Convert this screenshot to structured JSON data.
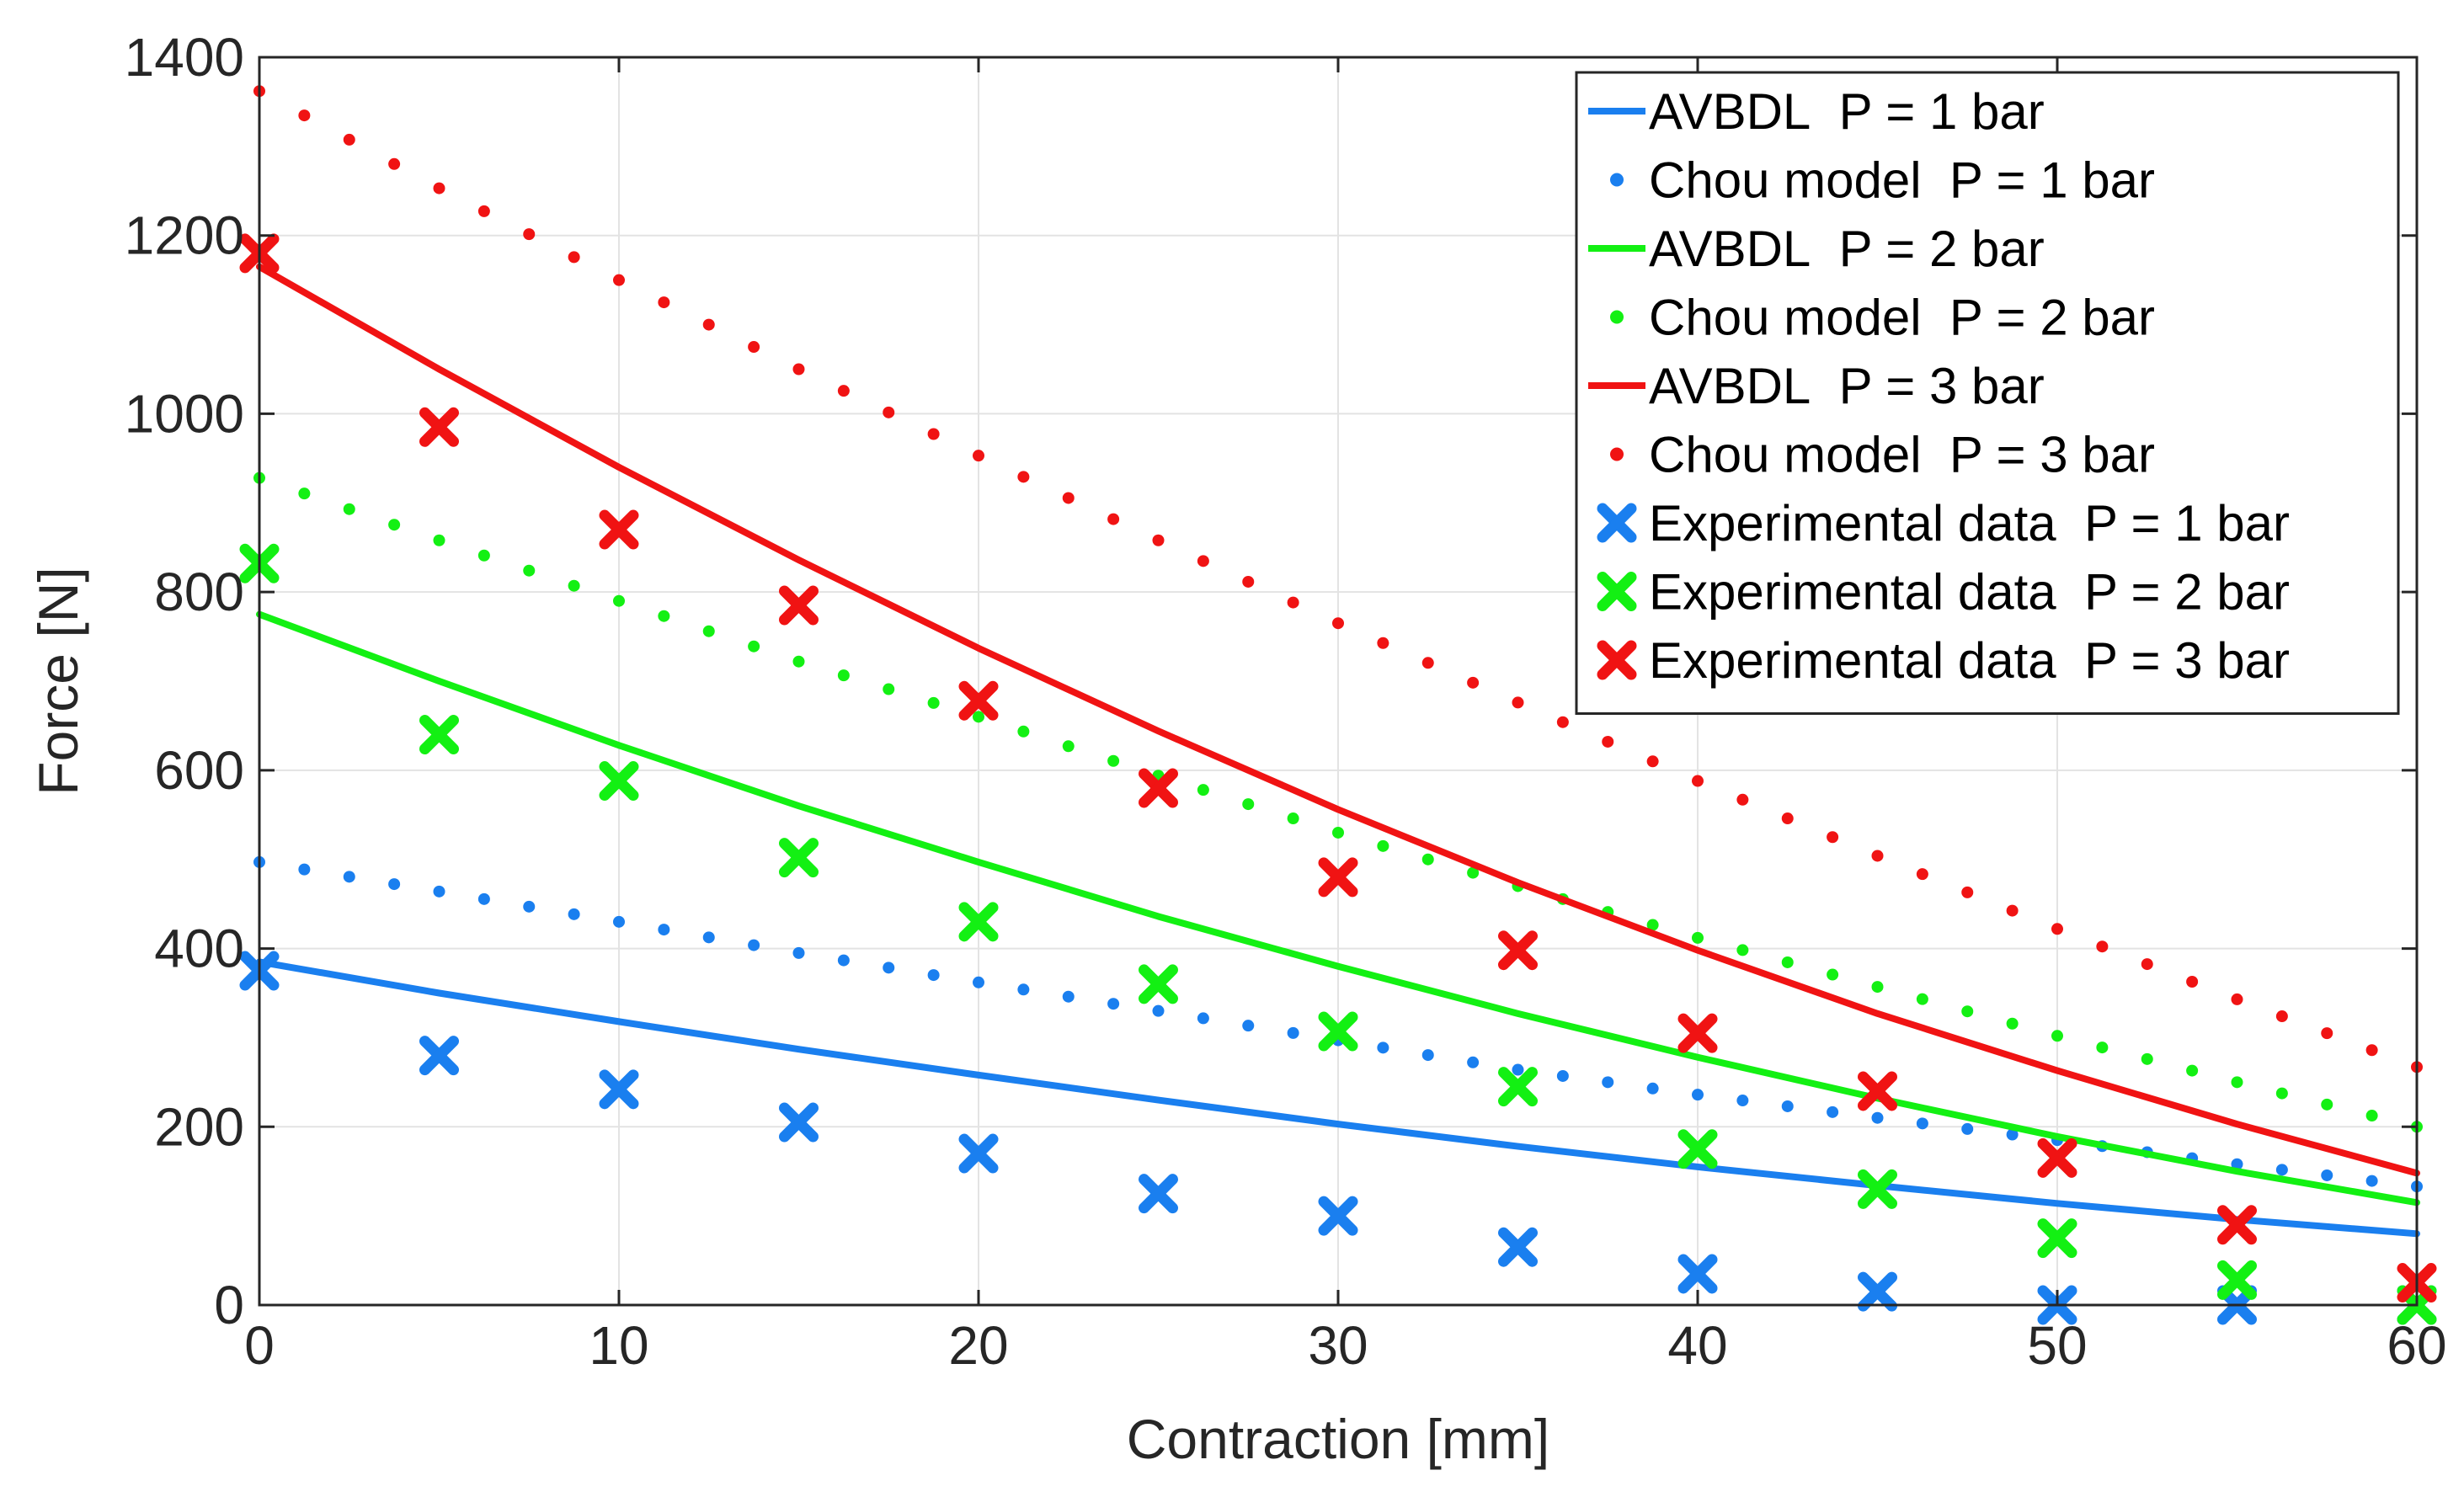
{
  "chart_data": {
    "type": "line",
    "title": "",
    "xlabel": "Contraction [mm]",
    "ylabel": "Force [N]",
    "xlim": [
      0,
      60
    ],
    "ylim": [
      0,
      1400
    ],
    "xticks": [
      0,
      10,
      20,
      30,
      40,
      50,
      60
    ],
    "yticks": [
      0,
      200,
      400,
      600,
      800,
      1000,
      1200,
      1400
    ],
    "grid": true,
    "legend_position": "top-right",
    "colors": {
      "blue": "#1a7fef",
      "green": "#13f013",
      "red": "#f01313"
    },
    "series": [
      {
        "name": "AVBDL",
        "pressure": "P = 1 bar",
        "style": "line",
        "color": "#1a7fef",
        "x": [
          0,
          5,
          10,
          15,
          20,
          25,
          30,
          35,
          40,
          45,
          50,
          55,
          60
        ],
        "y": [
          385,
          350,
          318,
          287,
          258,
          230,
          203,
          178,
          155,
          134,
          114,
          96,
          80
        ]
      },
      {
        "name": "Chou model",
        "pressure": "P = 1 bar",
        "style": "dotted",
        "color": "#1a7fef",
        "x": [
          0,
          5,
          10,
          15,
          20,
          25,
          30,
          35,
          40,
          45,
          50,
          55,
          60
        ],
        "y": [
          497,
          464,
          430,
          395,
          362,
          330,
          297,
          264,
          236,
          210,
          185,
          158,
          133
        ]
      },
      {
        "name": "AVBDL",
        "pressure": "P = 2 bar",
        "style": "line",
        "color": "#13f013",
        "x": [
          0,
          5,
          10,
          15,
          20,
          25,
          30,
          35,
          40,
          45,
          50,
          55,
          60
        ],
        "y": [
          775,
          700,
          628,
          560,
          497,
          436,
          380,
          327,
          278,
          232,
          189,
          150,
          115
        ]
      },
      {
        "name": "Chou model",
        "pressure": "P = 2 bar",
        "style": "dotted",
        "color": "#13f013",
        "x": [
          0,
          5,
          10,
          15,
          20,
          25,
          30,
          35,
          40,
          45,
          50,
          55,
          60
        ],
        "y": [
          928,
          858,
          790,
          722,
          660,
          594,
          530,
          470,
          412,
          357,
          302,
          250,
          200
        ]
      },
      {
        "name": "AVBDL",
        "pressure": "P = 3 bar",
        "style": "line",
        "color": "#f01313",
        "x": [
          0,
          5,
          10,
          15,
          20,
          25,
          30,
          35,
          40,
          45,
          50,
          55,
          60
        ],
        "y": [
          1165,
          1050,
          940,
          836,
          737,
          644,
          556,
          474,
          398,
          327,
          263,
          203,
          148
        ]
      },
      {
        "name": "Chou model",
        "pressure": "P = 3 bar",
        "style": "dotted",
        "color": "#f01313",
        "x": [
          0,
          5,
          10,
          15,
          20,
          25,
          30,
          35,
          40,
          45,
          50,
          55,
          60
        ],
        "y": [
          1362,
          1253,
          1150,
          1050,
          953,
          858,
          765,
          676,
          588,
          504,
          422,
          343,
          267
        ]
      },
      {
        "name": "Experimental data",
        "pressure": "P = 1 bar",
        "style": "marker",
        "color": "#1a7fef",
        "x": [
          0,
          5,
          10,
          15,
          20,
          25,
          30,
          35,
          40,
          45,
          50,
          55,
          60
        ],
        "y": [
          375,
          280,
          242,
          205,
          170,
          125,
          100,
          65,
          35,
          15,
          0,
          0,
          0
        ]
      },
      {
        "name": "Experimental data",
        "pressure": "P = 2 bar",
        "style": "marker",
        "color": "#13f013",
        "x": [
          0,
          5,
          10,
          15,
          20,
          25,
          30,
          35,
          40,
          45,
          50,
          55,
          60
        ],
        "y": [
          832,
          640,
          588,
          502,
          430,
          360,
          307,
          245,
          175,
          130,
          75,
          28,
          0
        ]
      },
      {
        "name": "Experimental data",
        "pressure": "P = 3 bar",
        "style": "marker",
        "color": "#f01313",
        "x": [
          0,
          5,
          10,
          15,
          20,
          25,
          30,
          35,
          40,
          45,
          50,
          55,
          60
        ],
        "y": [
          1180,
          985,
          870,
          785,
          678,
          580,
          480,
          398,
          305,
          240,
          165,
          90,
          25
        ]
      }
    ]
  }
}
